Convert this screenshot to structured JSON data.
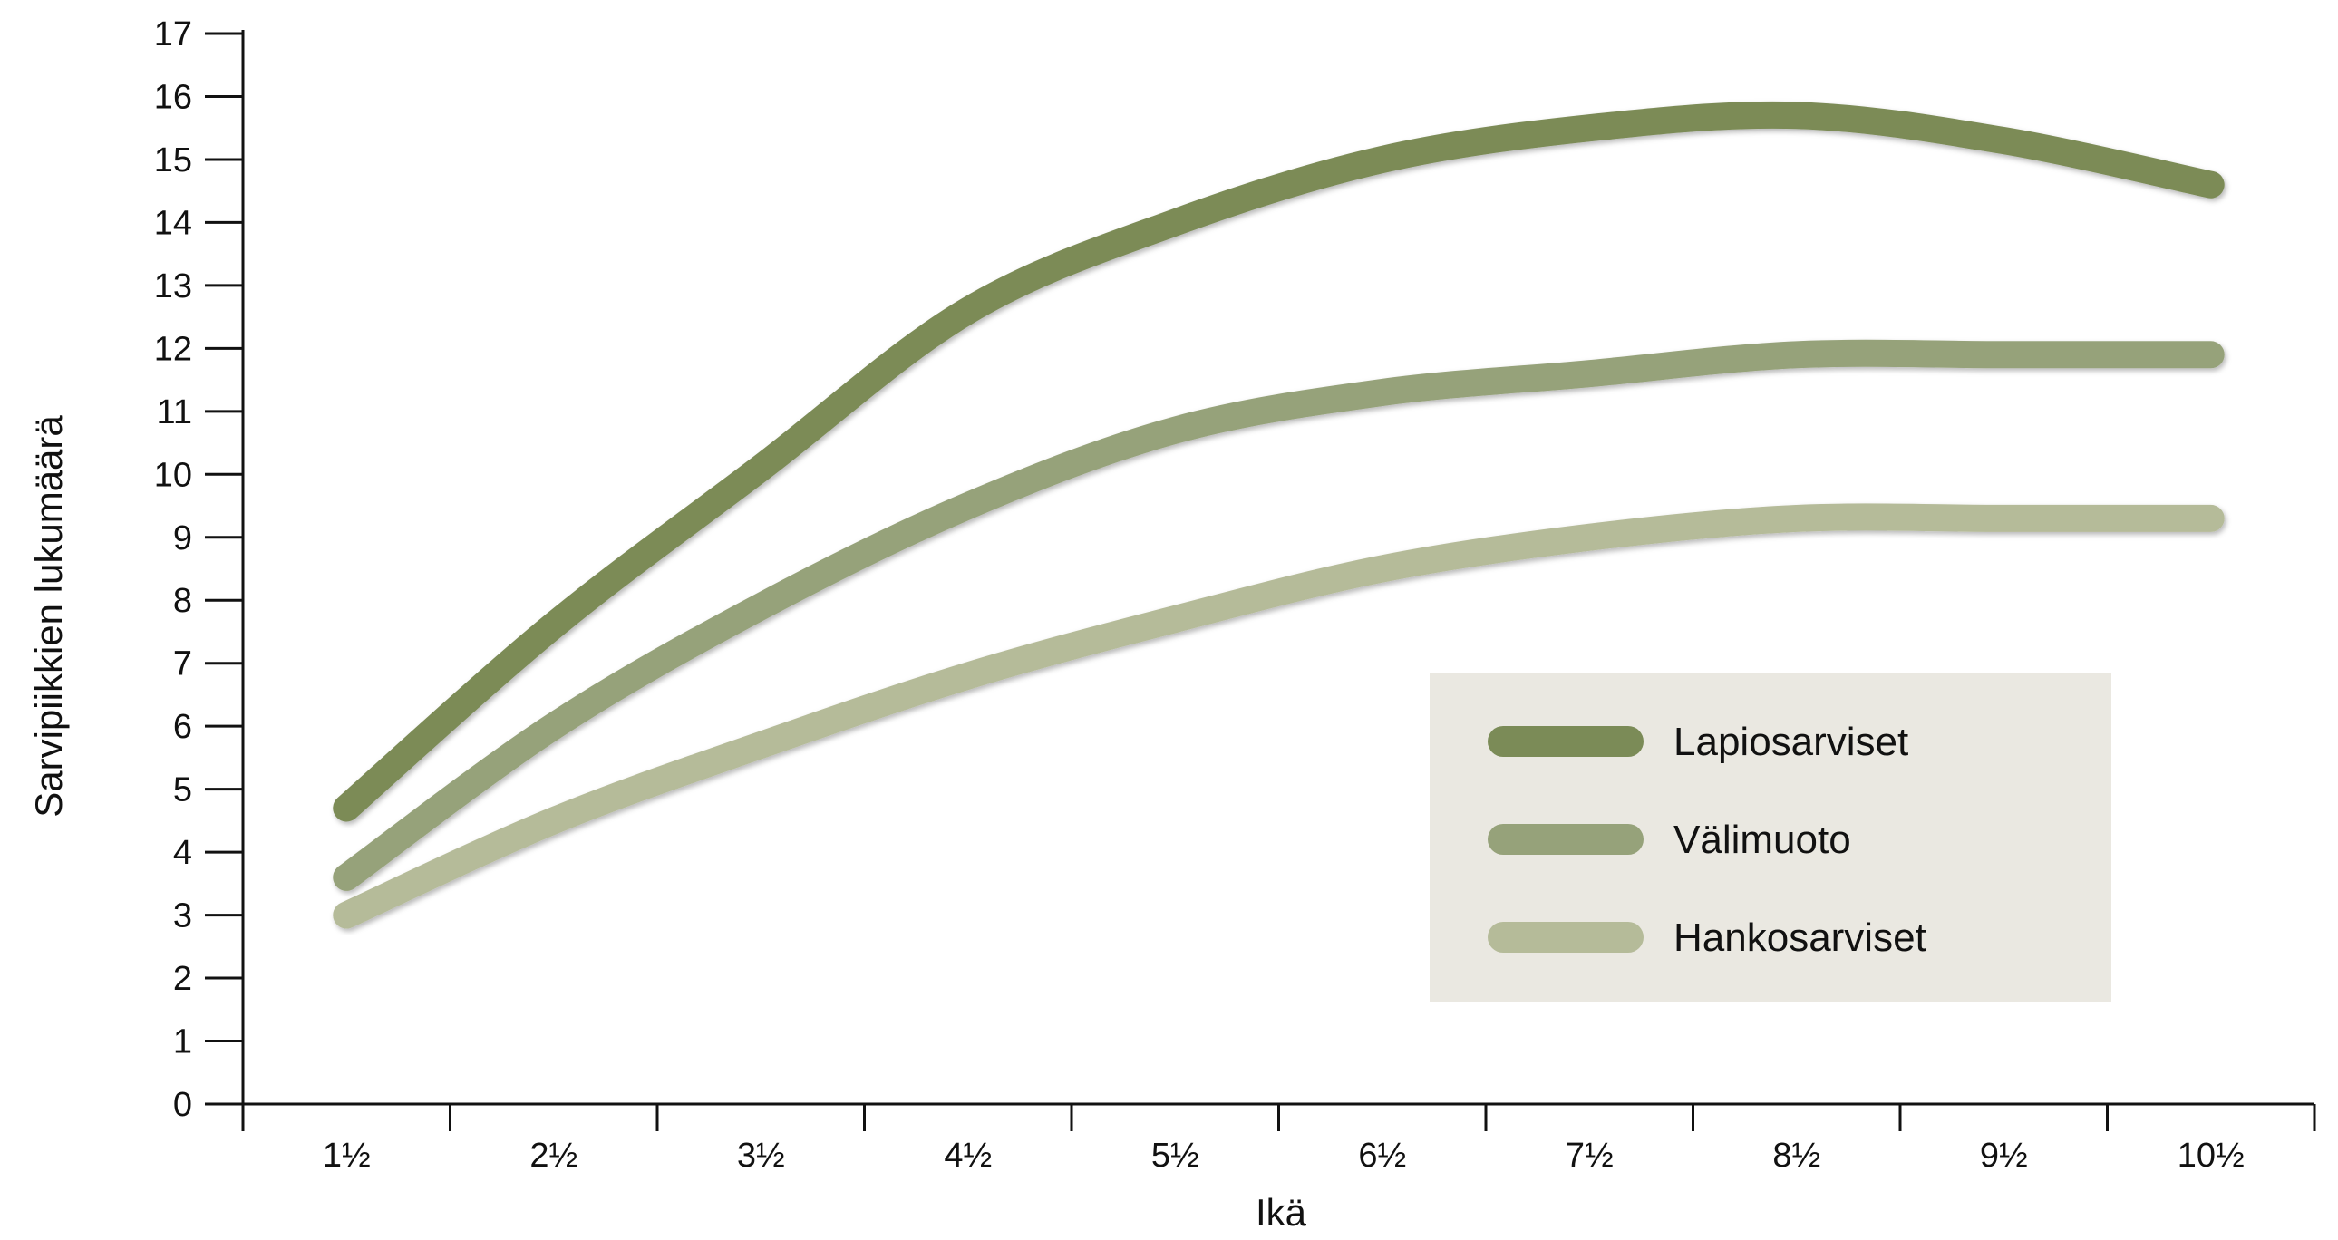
{
  "chart_data": {
    "type": "line",
    "title": "",
    "xlabel": "Ikä",
    "ylabel": "Sarvipiikkien lukumäärä",
    "categories": [
      "1½",
      "2½",
      "3½",
      "4½",
      "5½",
      "6½",
      "7½",
      "8½",
      "9½",
      "10½"
    ],
    "ylim": [
      0,
      17
    ],
    "yticks": [
      "0",
      "1",
      "2",
      "3",
      "4",
      "5",
      "6",
      "7",
      "8",
      "9",
      "10",
      "11",
      "12",
      "13",
      "14",
      "15",
      "16",
      "17"
    ],
    "grid": false,
    "legend_position": "center-right",
    "series": [
      {
        "name": "Lapiosarviset",
        "color": "#7b8b57",
        "values": [
          4.7,
          7.6,
          10.1,
          12.6,
          14.0,
          15.0,
          15.5,
          15.7,
          15.3,
          14.6
        ]
      },
      {
        "name": "Välimuoto",
        "color": "#96a27a",
        "values": [
          3.6,
          6.0,
          7.9,
          9.5,
          10.7,
          11.3,
          11.6,
          11.9,
          11.9,
          11.9
        ]
      },
      {
        "name": "Hankosarviset",
        "color": "#b5bb99",
        "values": [
          3.0,
          4.5,
          5.7,
          6.8,
          7.7,
          8.5,
          9.0,
          9.3,
          9.3,
          9.3
        ]
      }
    ],
    "legend_background": "#eae8e1"
  }
}
